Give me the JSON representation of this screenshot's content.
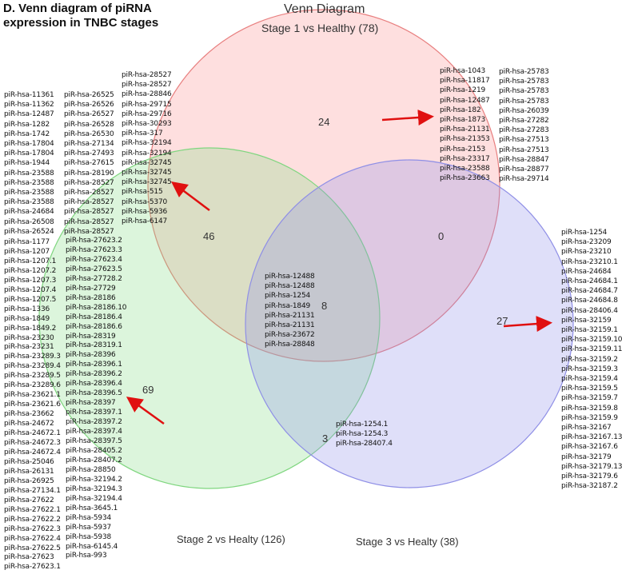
{
  "title_line1": "D. Venn diagram of piRNA",
  "title_line2": "expression in TNBC stages",
  "diagram_title": "Venn Diagram",
  "sets": [
    {
      "label": "Stage 1 vs Healthy (78)",
      "color": "#e87f7f"
    },
    {
      "label": "Stage 2 vs Healty (126)",
      "color": "#7fd67f"
    },
    {
      "label": "Stage 3 vs Healty (38)",
      "color": "#8f8fe6"
    }
  ],
  "counts": {
    "s1_only": "24",
    "s2_only": "69",
    "s3_only": "27",
    "s1_s2": "46",
    "s1_s3": "0",
    "s2_s3": "3",
    "all": "8"
  },
  "lists": {
    "s1_s2_col1": [
      "piR-hsa-11361",
      "piR-hsa-11362",
      "piR-hsa-12487",
      "piR-hsa-1282",
      "piR-hsa-1742",
      "piR-hsa-17804",
      "piR-hsa-17804",
      "piR-hsa-1944",
      "piR-hsa-23588",
      "piR-hsa-23588",
      "piR-hsa-23588",
      "piR-hsa-23588",
      "piR-hsa-24684",
      "piR-hsa-26508",
      "piR-hsa-26524"
    ],
    "s1_s2_col2": [
      "piR-hsa-26525",
      "piR-hsa-26526",
      "piR-hsa-26527",
      "piR-hsa-26528",
      "piR-hsa-26530",
      "piR-hsa-27134",
      "piR-hsa-27493",
      "piR-hsa-27615",
      "piR-hsa-28190",
      "piR-hsa-28527",
      "piR-hsa-28527",
      "piR-hsa-28527",
      "piR-hsa-28527",
      "piR-hsa-28527",
      "piR-hsa-28527"
    ],
    "s1_s2_col3": [
      "piR-hsa-28527",
      "piR-hsa-28527",
      "piR-hsa-28846",
      "piR-hsa-29715",
      "piR-hsa-29716",
      "piR-hsa-30293",
      "piR-hsa-317",
      "piR-hsa-32194",
      "piR-hsa-32194",
      "piR-hsa-32745",
      "piR-hsa-32745",
      "piR-hsa-32745",
      "piR-hsa-515",
      "piR-hsa-5370",
      "piR-hsa-5936",
      "piR-hsa-6147"
    ],
    "s1_col1": [
      "piR-hsa-1043",
      "piR-hsa-11817",
      "piR-hsa-1219",
      "piR-hsa-12487",
      "piR-hsa-182",
      "piR-hsa-1873",
      "piR-hsa-21131",
      "piR-hsa-21353",
      "piR-hsa-2153",
      "piR-hsa-23317",
      "piR-hsa-23588",
      "piR-hsa-23663"
    ],
    "s1_col2": [
      "piR-hsa-25783",
      "piR-hsa-25783",
      "piR-hsa-25783",
      "piR-hsa-25783",
      "piR-hsa-26039",
      "piR-hsa-27282",
      "piR-hsa-27283",
      "piR-hsa-27513",
      "piR-hsa-27513",
      "piR-hsa-28847",
      "piR-hsa-28877",
      "piR-hsa-29714"
    ],
    "s3": [
      "piR-hsa-1254",
      "piR-hsa-23209",
      "piR-hsa-23210",
      "piR-hsa-23210.1",
      "piR-hsa-24684",
      "piR-hsa-24684.1",
      "piR-hsa-24684.7",
      "piR-hsa-24684.8",
      "piR-hsa-28406.4",
      "piR-hsa-32159",
      "piR-hsa-32159.1",
      "piR-hsa-32159.10",
      "piR-hsa-32159.11",
      "piR-hsa-32159.2",
      "piR-hsa-32159.3",
      "piR-hsa-32159.4",
      "piR-hsa-32159.5",
      "piR-hsa-32159.7",
      "piR-hsa-32159.8",
      "piR-hsa-32159.9",
      "piR-hsa-32167",
      "piR-hsa-32167.13",
      "piR-hsa-32167.6",
      "piR-hsa-32179",
      "piR-hsa-32179.13",
      "piR-hsa-32179.6",
      "piR-hsa-32187.2"
    ],
    "s2_col1": [
      "piR-hsa-1177",
      "piR-hsa-1207",
      "piR-hsa-1207.1",
      "piR-hsa-1207.2",
      "piR-hsa-1207.3",
      "piR-hsa-1207.4",
      "piR-hsa-1207.5",
      "piR-hsa-1336",
      "piR-hsa-1849",
      "piR-hsa-1849.2",
      "piR-hsa-23230",
      "piR-hsa-23231",
      "piR-hsa-23289.3",
      "piR-hsa-23289.4",
      "piR-hsa-23289.5",
      "piR-hsa-23289.6",
      "piR-hsa-23621.1",
      "piR-hsa-23621.6",
      "piR-hsa-23662",
      "piR-hsa-24672",
      "piR-hsa-24672.1",
      "piR-hsa-24672.3",
      "piR-hsa-24672.4",
      "piR-hsa-25046",
      "piR-hsa-26131",
      "piR-hsa-26925",
      "piR-hsa-27134.1",
      "piR-hsa-27622",
      "piR-hsa-27622.1",
      "piR-hsa-27622.2",
      "piR-hsa-27622.3",
      "piR-hsa-27622.4",
      "piR-hsa-27622.5",
      "piR-hsa-27623",
      "piR-hsa-27623.1"
    ],
    "s2_col2": [
      "piR-hsa-27623.2",
      "piR-hsa-27623.3",
      "piR-hsa-27623.4",
      "piR-hsa-27623.5",
      "piR-hsa-27728.2",
      "piR-hsa-27729",
      "piR-hsa-28186",
      "piR-hsa-28186.10",
      "piR-hsa-28186.4",
      "piR-hsa-28186.6",
      "piR-hsa-28319",
      "piR-hsa-28319.1",
      "piR-hsa-28396",
      "piR-hsa-28396.1",
      "piR-hsa-28396.2",
      "piR-hsa-28396.4",
      "piR-hsa-28396.5",
      "piR-hsa-28397",
      "piR-hsa-28397.1",
      "piR-hsa-28397.2",
      "piR-hsa-28397.4",
      "piR-hsa-28397.5",
      "piR-hsa-28405.2",
      "piR-hsa-28407.2",
      "piR-hsa-28850",
      "piR-hsa-32194.2",
      "piR-hsa-32194.3",
      "piR-hsa-32194.4",
      "piR-hsa-3645.1",
      "piR-hsa-5934",
      "piR-hsa-5937",
      "piR-hsa-5938",
      "piR-hsa-6145.4",
      "piR-hsa-993"
    ],
    "all": [
      "piR-hsa-12488",
      "piR-hsa-12488",
      "piR-hsa-1254",
      "piR-hsa-1849",
      "piR-hsa-21131",
      "piR-hsa-21131",
      "piR-hsa-23672",
      "piR-hsa-28848"
    ],
    "s2_s3": [
      "piR-hsa-1254.1",
      "piR-hsa-1254.3",
      "piR-hsa-28407.4"
    ]
  },
  "arrow_color": "#e01010"
}
